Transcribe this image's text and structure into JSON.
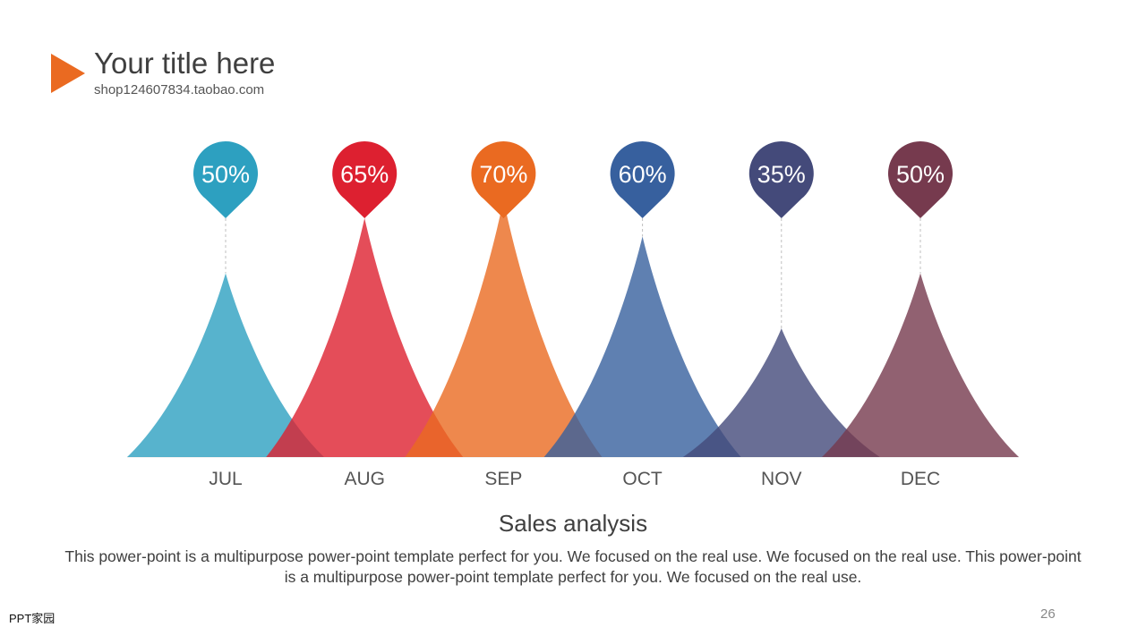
{
  "header": {
    "title": "Your title here",
    "subtitle": "shop124607834.taobao.com"
  },
  "chart_data": {
    "type": "area",
    "categories": [
      "JUL",
      "AUG",
      "SEP",
      "OCT",
      "NOV",
      "DEC"
    ],
    "values": [
      50,
      65,
      70,
      60,
      35,
      50
    ],
    "labels": [
      "50%",
      "65%",
      "70%",
      "60%",
      "35%",
      "50%"
    ],
    "colors": [
      "#2da0c0",
      "#dd2030",
      "#ea6a21",
      "#37609e",
      "#444a7a",
      "#763a4e"
    ],
    "ylim": [
      0,
      100
    ],
    "grid": false
  },
  "description": {
    "title": "Sales analysis",
    "body": "This power-point is a multipurpose power-point template perfect for you. We focused on the real use. We focused on the real use. This power-point is a multipurpose power-point template perfect for you. We focused on the real use."
  },
  "footer": {
    "logo_text": "PPT家园",
    "page_number": "26"
  }
}
